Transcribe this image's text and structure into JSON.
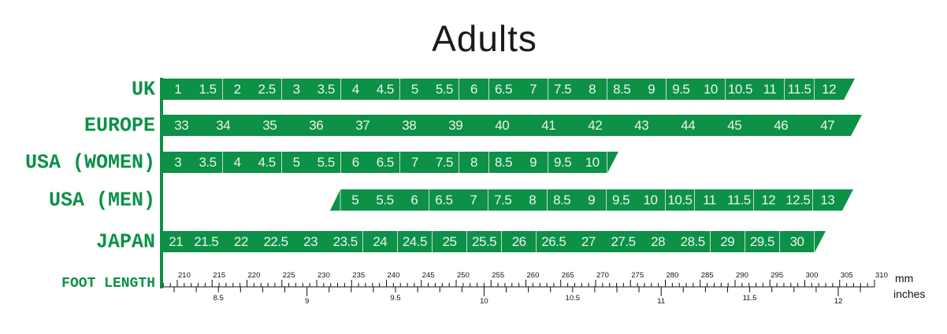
{
  "title": "Adults",
  "colors": {
    "accent": "#0c9147",
    "cell_text": "#eef3ee",
    "divider": "#cfd8cf"
  },
  "rows": [
    {
      "label": "UK",
      "sizes": [
        "1",
        "1.5",
        "2",
        "2.5",
        "3",
        "3.5",
        "4",
        "4.5",
        "5",
        "5.5",
        "6",
        "6.5",
        "7",
        "7.5",
        "8",
        "8.5",
        "9",
        "9.5",
        "10",
        "10.5",
        "11",
        "11.5",
        "12"
      ]
    },
    {
      "label": "EUROPE",
      "sizes": [
        "33",
        "34",
        "35",
        "36",
        "37",
        "38",
        "39",
        "40",
        "41",
        "42",
        "43",
        "44",
        "45",
        "46",
        "47"
      ]
    },
    {
      "label": "USA (WOMEN)",
      "sizes": [
        "3",
        "3.5",
        "4",
        "4.5",
        "5",
        "5.5",
        "6",
        "6.5",
        "7",
        "7.5",
        "8",
        "8.5",
        "9",
        "9.5",
        "10"
      ]
    },
    {
      "label": "USA (MEN)",
      "sizes": [
        "5",
        "5.5",
        "6",
        "6.5",
        "7",
        "7.5",
        "8",
        "8.5",
        "9",
        "9.5",
        "10",
        "10.5",
        "11",
        "11.5",
        "12",
        "12.5",
        "13"
      ]
    },
    {
      "label": "JAPAN",
      "sizes": [
        "21",
        "21.5",
        "22",
        "22.5",
        "23",
        "23.5",
        "24",
        "24.5",
        "25",
        "25.5",
        "26",
        "26.5",
        "27",
        "27.5",
        "28",
        "28.5",
        "29",
        "29.5",
        "30"
      ]
    }
  ],
  "foot_length": {
    "label": "FOOT LENGTH",
    "mm_unit": "mm",
    "inch_unit": "inches",
    "mm_labels": [
      210,
      215,
      220,
      225,
      230,
      235,
      240,
      245,
      250,
      255,
      260,
      265,
      270,
      275,
      280,
      285,
      290,
      295,
      300,
      305,
      310
    ],
    "inch_labels": [
      "8.5",
      "9",
      "9.5",
      "10",
      "10.5",
      "11",
      "11.5",
      "12"
    ]
  }
}
